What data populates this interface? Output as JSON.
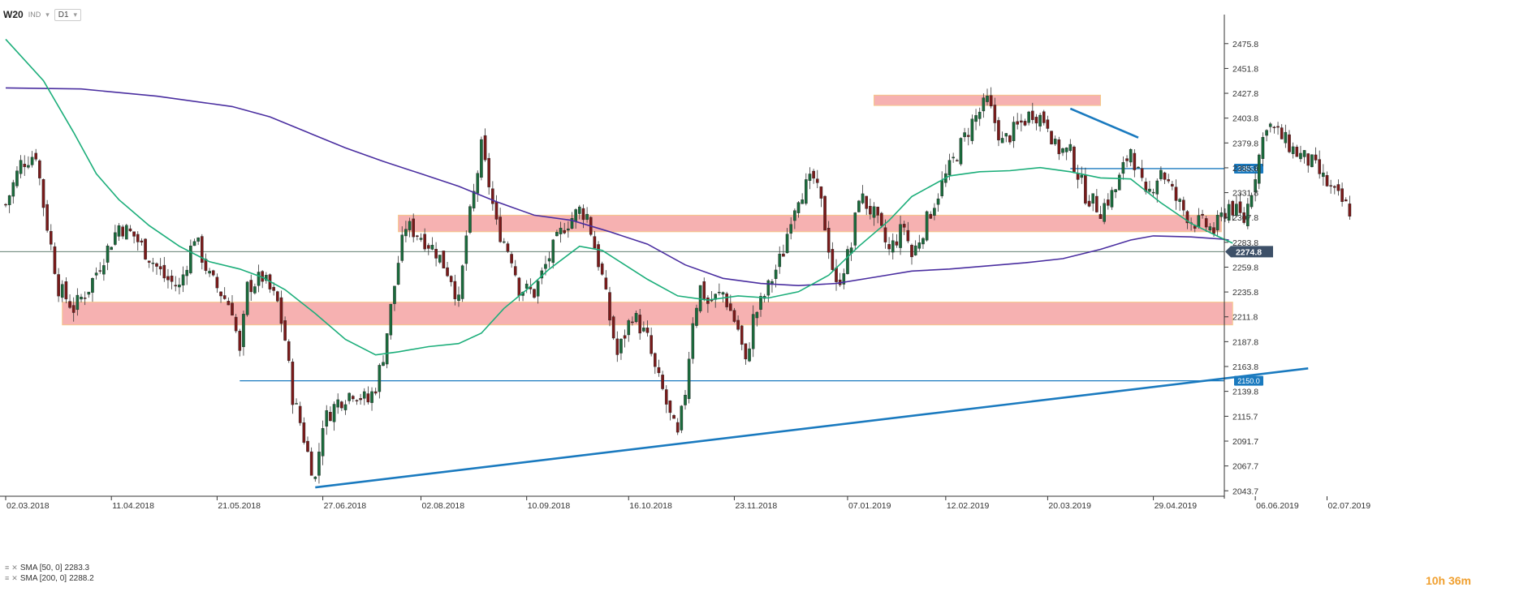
{
  "toolbar": {
    "symbol": "W20",
    "indicator": "IND",
    "timeframe": "D1"
  },
  "legend": [
    {
      "label": "SMA [50, 0]",
      "value": "2283.3"
    },
    {
      "label": "SMA [200, 0]",
      "value": "2288.2"
    }
  ],
  "countdown": {
    "hours": "10",
    "h": "h",
    "minutes": "36",
    "m": "m"
  },
  "colors": {
    "bull": "#1a6b3c",
    "bear": "#7a1a1a",
    "zone": "#f4a3a3",
    "zone_border": "#f5c88a",
    "sma50": "#1cae7a",
    "sma200": "#4a2ea0",
    "trend": "#1a7abf",
    "price_line": "#4a6a5a"
  },
  "chart_data": {
    "type": "candlestick",
    "title": "",
    "xlabel": "",
    "ylabel": "",
    "ylim": [
      2040,
      2496
    ],
    "y_ticks": [
      2475.8,
      2451.8,
      2427.8,
      2403.8,
      2379.8,
      2355.8,
      2331.8,
      2307.8,
      2283.8,
      2259.8,
      2235.8,
      2211.8,
      2187.8,
      2163.8,
      2139.8,
      2115.7,
      2091.7,
      2067.7,
      2043.7
    ],
    "x_ticks": [
      "02.03.2018",
      "11.04.2018",
      "21.05.2018",
      "27.06.2018",
      "02.08.2018",
      "10.09.2018",
      "16.10.2018",
      "23.11.2018",
      "07.01.2019",
      "12.02.2019",
      "20.03.2019",
      "29.04.2019",
      "06.06.2019",
      "02.07.2019"
    ],
    "x_tick_bars": [
      0,
      28,
      56,
      84,
      110,
      138,
      165,
      193,
      223,
      249,
      276,
      304,
      331,
      350
    ],
    "bar_count": 380,
    "current_price": {
      "value": 2274.8,
      "label": "2274.8"
    },
    "levels": [
      {
        "value": 2355.0,
        "label": "2355.0",
        "from_bar": 282
      },
      {
        "value": 2150.0,
        "label": "2150.0",
        "from_bar": 62
      }
    ],
    "zones": [
      {
        "from_bar": 230,
        "to_bar": 290,
        "low": 2416,
        "high": 2426
      },
      {
        "from_bar": 104,
        "to_bar": 322,
        "low": 2294,
        "high": 2310
      },
      {
        "from_bar": 15,
        "to_bar": 325,
        "low": 2204,
        "high": 2226
      }
    ],
    "trendlines": [
      {
        "x1": 82,
        "y1": 2047,
        "x2": 345,
        "y2": 2162
      },
      {
        "x1": 282,
        "y1": 2413,
        "x2": 300,
        "y2": 2385
      }
    ],
    "sma50_points": [
      [
        0,
        2480
      ],
      [
        10,
        2440
      ],
      [
        18,
        2390
      ],
      [
        24,
        2350
      ],
      [
        30,
        2325
      ],
      [
        38,
        2300
      ],
      [
        46,
        2280
      ],
      [
        54,
        2265
      ],
      [
        62,
        2258
      ],
      [
        68,
        2250
      ],
      [
        74,
        2238
      ],
      [
        82,
        2215
      ],
      [
        90,
        2190
      ],
      [
        98,
        2175
      ],
      [
        104,
        2178
      ],
      [
        112,
        2183
      ],
      [
        120,
        2186
      ],
      [
        126,
        2196
      ],
      [
        132,
        2220
      ],
      [
        138,
        2238
      ],
      [
        144,
        2258
      ],
      [
        152,
        2280
      ],
      [
        158,
        2276
      ],
      [
        164,
        2262
      ],
      [
        170,
        2248
      ],
      [
        178,
        2232
      ],
      [
        186,
        2228
      ],
      [
        194,
        2232
      ],
      [
        202,
        2230
      ],
      [
        210,
        2236
      ],
      [
        218,
        2252
      ],
      [
        226,
        2280
      ],
      [
        234,
        2305
      ],
      [
        240,
        2328
      ],
      [
        250,
        2348
      ],
      [
        258,
        2352
      ],
      [
        266,
        2353
      ],
      [
        274,
        2356
      ],
      [
        282,
        2352
      ],
      [
        290,
        2346
      ],
      [
        298,
        2345
      ],
      [
        306,
        2322
      ],
      [
        314,
        2302
      ],
      [
        322,
        2288
      ],
      [
        325,
        2283
      ]
    ],
    "sma200_points": [
      [
        0,
        2433
      ],
      [
        20,
        2432
      ],
      [
        40,
        2425
      ],
      [
        60,
        2415
      ],
      [
        70,
        2405
      ],
      [
        80,
        2390
      ],
      [
        90,
        2375
      ],
      [
        100,
        2362
      ],
      [
        110,
        2350
      ],
      [
        120,
        2338
      ],
      [
        130,
        2323
      ],
      [
        140,
        2310
      ],
      [
        150,
        2305
      ],
      [
        160,
        2294
      ],
      [
        170,
        2282
      ],
      [
        180,
        2262
      ],
      [
        190,
        2249
      ],
      [
        200,
        2244
      ],
      [
        210,
        2242
      ],
      [
        220,
        2244
      ],
      [
        230,
        2250
      ],
      [
        240,
        2256
      ],
      [
        250,
        2258
      ],
      [
        260,
        2261
      ],
      [
        270,
        2264
      ],
      [
        280,
        2268
      ],
      [
        290,
        2277
      ],
      [
        298,
        2286
      ],
      [
        304,
        2290
      ],
      [
        314,
        2289
      ],
      [
        322,
        2287
      ],
      [
        324,
        2286
      ]
    ],
    "price_points": [
      [
        0,
        2320
      ],
      [
        4,
        2360
      ],
      [
        8,
        2370
      ],
      [
        10,
        2320
      ],
      [
        14,
        2240
      ],
      [
        18,
        2220
      ],
      [
        22,
        2240
      ],
      [
        26,
        2270
      ],
      [
        30,
        2300
      ],
      [
        34,
        2290
      ],
      [
        38,
        2270
      ],
      [
        42,
        2250
      ],
      [
        46,
        2240
      ],
      [
        50,
        2290
      ],
      [
        54,
        2250
      ],
      [
        58,
        2230
      ],
      [
        60,
        2220
      ],
      [
        62,
        2175
      ],
      [
        64,
        2240
      ],
      [
        68,
        2250
      ],
      [
        72,
        2225
      ],
      [
        74,
        2190
      ],
      [
        76,
        2135
      ],
      [
        78,
        2110
      ],
      [
        80,
        2080
      ],
      [
        82,
        2055
      ],
      [
        84,
        2110
      ],
      [
        88,
        2130
      ],
      [
        92,
        2140
      ],
      [
        96,
        2130
      ],
      [
        98,
        2145
      ],
      [
        100,
        2175
      ],
      [
        102,
        2220
      ],
      [
        104,
        2265
      ],
      [
        106,
        2300
      ],
      [
        110,
        2290
      ],
      [
        114,
        2275
      ],
      [
        118,
        2250
      ],
      [
        120,
        2225
      ],
      [
        122,
        2290
      ],
      [
        124,
        2330
      ],
      [
        126,
        2375
      ],
      [
        128,
        2340
      ],
      [
        130,
        2300
      ],
      [
        134,
        2270
      ],
      [
        136,
        2240
      ],
      [
        140,
        2235
      ],
      [
        144,
        2270
      ],
      [
        148,
        2300
      ],
      [
        152,
        2315
      ],
      [
        154,
        2310
      ],
      [
        156,
        2280
      ],
      [
        158,
        2250
      ],
      [
        160,
        2210
      ],
      [
        162,
        2175
      ],
      [
        166,
        2215
      ],
      [
        170,
        2190
      ],
      [
        172,
        2160
      ],
      [
        174,
        2140
      ],
      [
        176,
        2115
      ],
      [
        178,
        2095
      ],
      [
        180,
        2140
      ],
      [
        182,
        2210
      ],
      [
        184,
        2240
      ],
      [
        186,
        2225
      ],
      [
        190,
        2235
      ],
      [
        194,
        2200
      ],
      [
        196,
        2165
      ],
      [
        198,
        2210
      ],
      [
        202,
        2240
      ],
      [
        206,
        2275
      ],
      [
        208,
        2310
      ],
      [
        210,
        2330
      ],
      [
        214,
        2345
      ],
      [
        216,
        2320
      ],
      [
        218,
        2280
      ],
      [
        220,
        2240
      ],
      [
        224,
        2280
      ],
      [
        226,
        2330
      ],
      [
        230,
        2310
      ],
      [
        234,
        2275
      ],
      [
        238,
        2300
      ],
      [
        240,
        2270
      ],
      [
        244,
        2305
      ],
      [
        248,
        2340
      ],
      [
        252,
        2370
      ],
      [
        256,
        2400
      ],
      [
        260,
        2420
      ],
      [
        264,
        2380
      ],
      [
        268,
        2395
      ],
      [
        272,
        2410
      ],
      [
        276,
        2400
      ],
      [
        278,
        2375
      ],
      [
        282,
        2370
      ],
      [
        286,
        2330
      ],
      [
        290,
        2315
      ],
      [
        294,
        2335
      ],
      [
        298,
        2375
      ],
      [
        302,
        2325
      ],
      [
        306,
        2355
      ],
      [
        310,
        2325
      ],
      [
        314,
        2305
      ],
      [
        318,
        2300
      ],
      [
        320,
        2295
      ],
      [
        324,
        2320
      ],
      [
        328,
        2305
      ],
      [
        330,
        2335
      ],
      [
        334,
        2400
      ],
      [
        338,
        2385
      ],
      [
        342,
        2370
      ],
      [
        346,
        2360
      ],
      [
        348,
        2350
      ],
      [
        352,
        2330
      ],
      [
        356,
        2315
      ]
    ]
  }
}
